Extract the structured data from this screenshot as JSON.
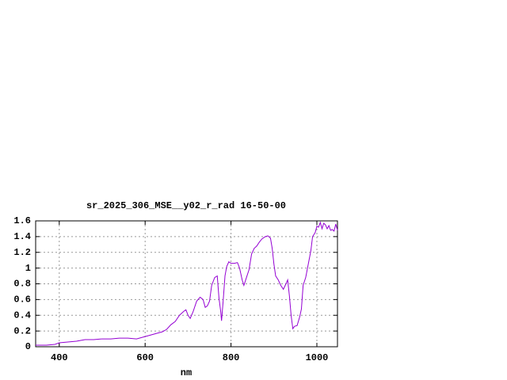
{
  "chart_data": {
    "type": "line",
    "title": "sr_2025_306_MSE__y02_r_rad 16-50-00",
    "x_label": "nm",
    "x": [
      345,
      370,
      390,
      400,
      420,
      440,
      460,
      480,
      500,
      520,
      540,
      560,
      580,
      600,
      620,
      640,
      650,
      660,
      670,
      680,
      690,
      695,
      700,
      705,
      712,
      720,
      728,
      735,
      740,
      745,
      750,
      755,
      762,
      768,
      772,
      776,
      778,
      782,
      786,
      790,
      795,
      800,
      808,
      815,
      820,
      826,
      830,
      836,
      842,
      848,
      854,
      860,
      866,
      872,
      880,
      886,
      892,
      896,
      900,
      904,
      910,
      916,
      922,
      928,
      932,
      936,
      940,
      944,
      948,
      954,
      960,
      964,
      968,
      974,
      980,
      986,
      990,
      996,
      1000,
      1004,
      1008,
      1012,
      1016,
      1020,
      1024,
      1028,
      1032,
      1036,
      1040,
      1044,
      1048
    ],
    "series": [
      {
        "color": "#9400d3",
        "values": [
          0.02,
          0.02,
          0.03,
          0.05,
          0.06,
          0.07,
          0.09,
          0.09,
          0.1,
          0.1,
          0.11,
          0.11,
          0.1,
          0.13,
          0.16,
          0.19,
          0.22,
          0.28,
          0.32,
          0.4,
          0.45,
          0.47,
          0.4,
          0.36,
          0.45,
          0.58,
          0.63,
          0.6,
          0.5,
          0.52,
          0.58,
          0.78,
          0.88,
          0.9,
          0.62,
          0.45,
          0.33,
          0.6,
          0.9,
          1.02,
          1.08,
          1.06,
          1.06,
          1.07,
          1.0,
          0.85,
          0.78,
          0.88,
          0.98,
          1.18,
          1.25,
          1.28,
          1.33,
          1.37,
          1.4,
          1.41,
          1.38,
          1.25,
          1.05,
          0.9,
          0.85,
          0.78,
          0.73,
          0.8,
          0.85,
          0.65,
          0.4,
          0.23,
          0.26,
          0.27,
          0.38,
          0.48,
          0.78,
          0.88,
          1.05,
          1.22,
          1.4,
          1.45,
          1.53,
          1.52,
          1.58,
          1.5,
          1.57,
          1.55,
          1.5,
          1.54,
          1.48,
          1.49,
          1.47,
          1.56,
          1.48
        ]
      }
    ],
    "xlim": [
      345,
      1048
    ],
    "ylim": [
      0,
      1.6
    ],
    "xticks": [
      400,
      600,
      800,
      1000
    ],
    "yticks": [
      0,
      0.2,
      0.4,
      0.6,
      0.8,
      1,
      1.2,
      1.4,
      1.6
    ],
    "grid": true
  }
}
